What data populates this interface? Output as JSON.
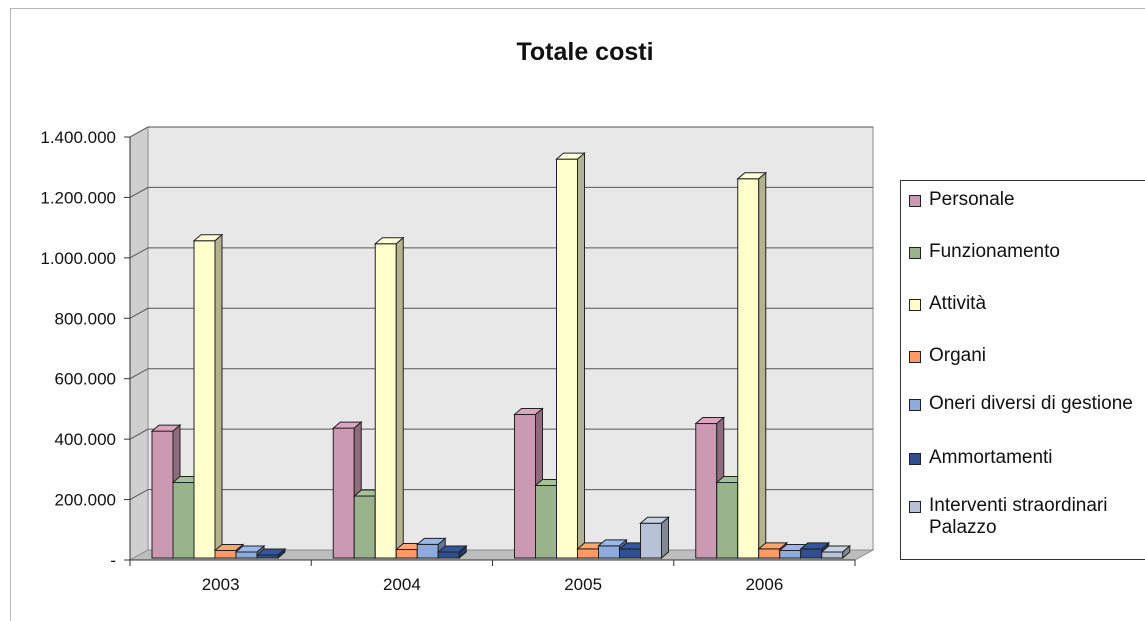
{
  "chart_data": {
    "type": "bar",
    "title": "Totale costi",
    "xlabel": "",
    "ylabel": "",
    "ylim": [
      0,
      1400000
    ],
    "y_ticks": [
      "-",
      "200.000",
      "400.000",
      "600.000",
      "800.000",
      "1.000.000",
      "1.200.000",
      "1.400.000"
    ],
    "categories": [
      "2003",
      "2004",
      "2005",
      "2006"
    ],
    "grid": true,
    "legend_position": "right",
    "series": [
      {
        "name": "Personale",
        "color": "#cc99b3",
        "values": [
          420000,
          430000,
          475000,
          445000
        ]
      },
      {
        "name": "Funzionamento",
        "color": "#99b38c",
        "values": [
          250000,
          205000,
          240000,
          250000
        ]
      },
      {
        "name": "Attività",
        "color": "#ffffcc",
        "values": [
          1050000,
          1040000,
          1320000,
          1255000
        ]
      },
      {
        "name": "Organi",
        "color": "#ff9966",
        "values": [
          25000,
          28000,
          30000,
          30000
        ]
      },
      {
        "name": "Oneri diversi di gestione",
        "color": "#8faadc",
        "values": [
          20000,
          45000,
          40000,
          25000
        ]
      },
      {
        "name": "Ammortamenti",
        "color": "#2f4f8f",
        "values": [
          10000,
          20000,
          30000,
          30000
        ]
      },
      {
        "name": "Interventi straordinari Palazzo",
        "color": "#b8c2d6",
        "values": [
          0,
          0,
          115000,
          20000
        ]
      }
    ]
  }
}
